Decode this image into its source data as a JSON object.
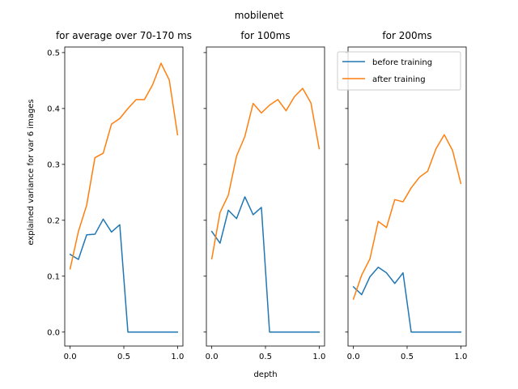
{
  "suptitle": "mobilenet",
  "chart_data": [
    {
      "type": "line",
      "title": "for average over 70-170 ms",
      "xlabel": "",
      "ylabel": "explained variance for var 6 images",
      "xlim": [
        -0.05,
        1.05
      ],
      "ylim": [
        -0.025,
        0.51
      ],
      "xticks": [
        0.0,
        0.5,
        1.0
      ],
      "xtick_labels": [
        "0.0",
        "0.5",
        "1.0"
      ],
      "yticks": [
        0.0,
        0.1,
        0.2,
        0.3,
        0.4,
        0.5
      ],
      "ytick_labels": [
        "0.0",
        "0.1",
        "0.2",
        "0.3",
        "0.4",
        "0.5"
      ],
      "x": [
        0.0,
        0.077,
        0.154,
        0.231,
        0.308,
        0.385,
        0.462,
        0.538,
        0.615,
        0.692,
        0.769,
        0.846,
        0.923,
        1.0
      ],
      "series": [
        {
          "name": "before training",
          "color": "#1f77b4",
          "values": [
            0.139,
            0.13,
            0.174,
            0.175,
            0.202,
            0.179,
            0.192,
            0.0,
            0.0,
            0.0,
            0.0,
            0.0,
            0.0,
            0.0
          ]
        },
        {
          "name": "after training",
          "color": "#ff7f0e",
          "values": [
            0.113,
            0.18,
            0.227,
            0.312,
            0.32,
            0.372,
            0.382,
            0.4,
            0.416,
            0.416,
            0.443,
            0.481,
            0.451,
            0.353
          ]
        }
      ],
      "legend": false
    },
    {
      "type": "line",
      "title": "for 100ms",
      "xlabel": "depth",
      "ylabel": "",
      "xlim": [
        -0.05,
        1.05
      ],
      "ylim": [
        -0.025,
        0.51
      ],
      "xticks": [
        0.0,
        0.5,
        1.0
      ],
      "xtick_labels": [
        "0.0",
        "0.5",
        "1.0"
      ],
      "x": [
        0.0,
        0.077,
        0.154,
        0.231,
        0.308,
        0.385,
        0.462,
        0.538,
        0.615,
        0.692,
        0.769,
        0.846,
        0.923,
        1.0
      ],
      "series": [
        {
          "name": "before training",
          "color": "#1f77b4",
          "values": [
            0.18,
            0.159,
            0.218,
            0.203,
            0.242,
            0.21,
            0.223,
            0.0,
            0.0,
            0.0,
            0.0,
            0.0,
            0.0,
            0.0
          ]
        },
        {
          "name": "after training",
          "color": "#ff7f0e",
          "values": [
            0.131,
            0.214,
            0.245,
            0.315,
            0.35,
            0.409,
            0.392,
            0.406,
            0.416,
            0.396,
            0.421,
            0.436,
            0.41,
            0.328
          ]
        }
      ],
      "legend": false
    },
    {
      "type": "line",
      "title": "for 200ms",
      "xlabel": "",
      "ylabel": "",
      "xlim": [
        -0.05,
        1.05
      ],
      "ylim": [
        -0.025,
        0.51
      ],
      "xticks": [
        0.0,
        0.5,
        1.0
      ],
      "xtick_labels": [
        "0.0",
        "0.5",
        "1.0"
      ],
      "x": [
        0.0,
        0.077,
        0.154,
        0.231,
        0.308,
        0.385,
        0.462,
        0.538,
        0.615,
        0.692,
        0.769,
        0.846,
        0.923,
        1.0
      ],
      "series": [
        {
          "name": "before training",
          "color": "#1f77b4",
          "values": [
            0.081,
            0.067,
            0.099,
            0.116,
            0.106,
            0.087,
            0.106,
            0.0,
            0.0,
            0.0,
            0.0,
            0.0,
            0.0,
            0.0
          ]
        },
        {
          "name": "after training",
          "color": "#ff7f0e",
          "values": [
            0.059,
            0.102,
            0.131,
            0.198,
            0.187,
            0.237,
            0.233,
            0.258,
            0.277,
            0.288,
            0.328,
            0.353,
            0.325,
            0.266
          ]
        }
      ],
      "legend": true,
      "legend_position": "top-right"
    }
  ]
}
